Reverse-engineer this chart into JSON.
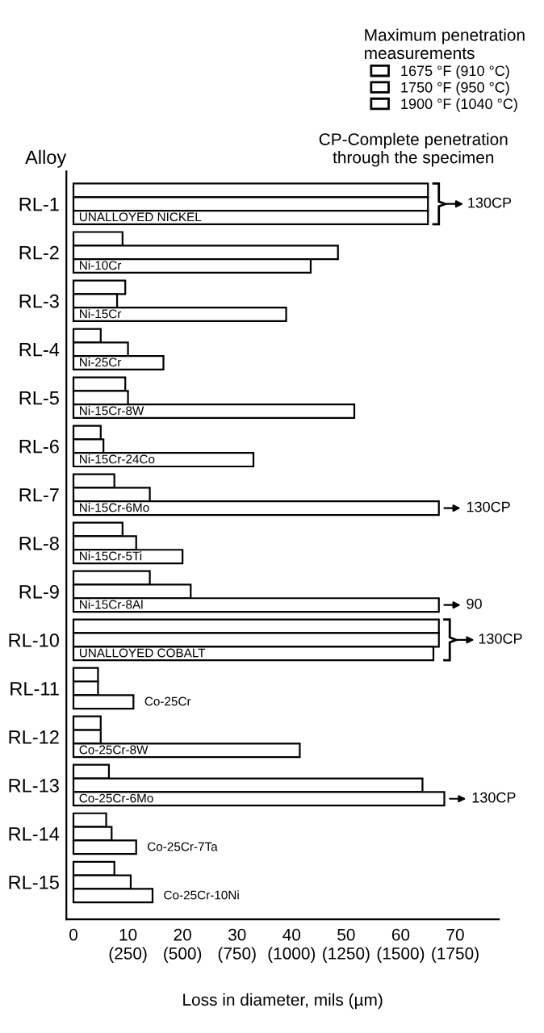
{
  "chart_data": {
    "type": "bar",
    "orientation": "horizontal",
    "ylabel": "Alloy",
    "xlabel": "Loss in diameter, mils (µm)",
    "legend_title": "Maximum penetration\nmeasurements",
    "legend": "top right",
    "categories": [
      "RL-1",
      "RL-2",
      "RL-3",
      "RL-4",
      "RL-5",
      "RL-6",
      "RL-7",
      "RL-8",
      "RL-9",
      "RL-10",
      "RL-11",
      "RL-12",
      "RL-13",
      "RL-14",
      "RL-15"
    ],
    "series": [
      {
        "name": "1675 °F (910 °C)",
        "color": "#ffffff",
        "values": [
          65,
          9,
          9.5,
          5,
          9.5,
          5,
          7.5,
          9,
          14,
          67,
          4.5,
          5,
          6.5,
          6,
          7.5
        ]
      },
      {
        "name": "1750 °F (950 °C)",
        "color": "#ffffff",
        "values": [
          65,
          48.5,
          8,
          10,
          10,
          5.5,
          14,
          11.5,
          21.5,
          67,
          4.5,
          5,
          64,
          7,
          10.5
        ]
      },
      {
        "name": "1900 °F (1040 °C)",
        "color": "#ffffff",
        "values": [
          65,
          43.5,
          39,
          16.5,
          51.5,
          33,
          67,
          20,
          67,
          66,
          11,
          41.5,
          68,
          11.5,
          14.5
        ]
      }
    ],
    "xlim": [
      -1.3,
      78
    ],
    "xticks": [
      0,
      10,
      20,
      30,
      40,
      50,
      60,
      70
    ],
    "x2lim": [
      -32.5,
      1950
    ],
    "x2ticks": [
      {
        "value": 250,
        "label": "(250)"
      },
      {
        "value": 500,
        "label": "(500)"
      },
      {
        "value": 750,
        "label": "(750)"
      },
      {
        "value": 1000,
        "label": "(1000)"
      },
      {
        "value": 1250,
        "label": "(1250)"
      },
      {
        "value": 1500,
        "label": "(1500)"
      },
      {
        "value": 1750,
        "label": "(1750)"
      }
    ],
    "grid": false,
    "annotations": [
      "CP-Complete penetration\nthrough the specimen",
      "UNALLOYED NICKEL",
      "Ni-10Cr",
      "Ni-15Cr",
      "Ni-25Cr",
      "Ni-15Cr-8W",
      "Ni-15Cr-24Co",
      "Ni-15Cr-6Mo",
      "Ni-15Cr-5Ti",
      "Ni-15Cr-8Al",
      "UNALLOYED COBALT",
      "Co-25Cr",
      "Co-25Cr-8W",
      "Co-25Cr-6Mo",
      "Co-25Cr-7Ta",
      "Co-25Cr-10Ni",
      "130CP",
      "130CP",
      "90",
      "130CP",
      "130CP"
    ]
  }
}
